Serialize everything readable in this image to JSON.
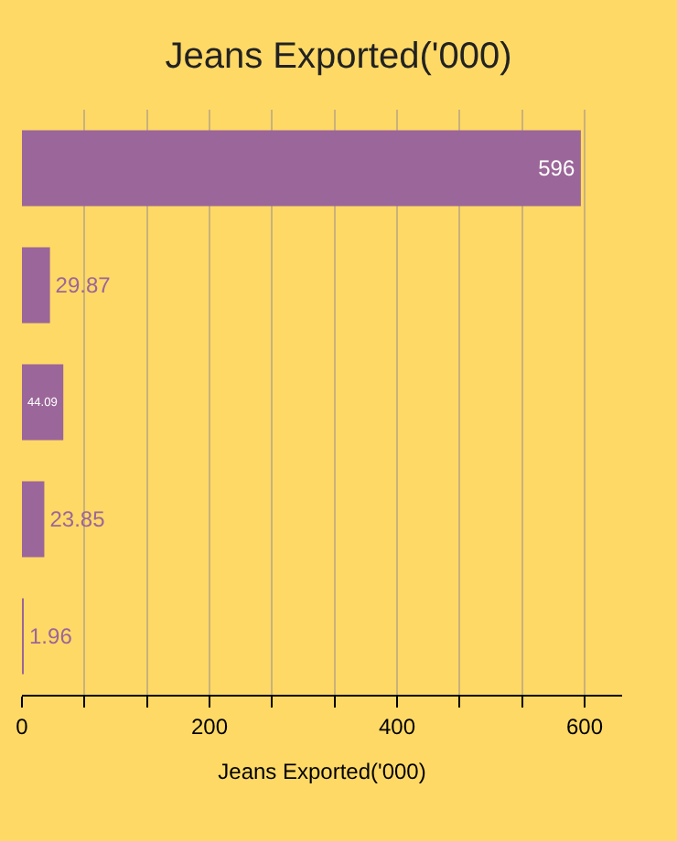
{
  "chart_data": {
    "type": "bar",
    "orientation": "horizontal",
    "title": "Jeans Exported('000)",
    "xlabel": "Jeans Exported('000)",
    "categories": [
      null,
      null,
      null,
      null,
      null
    ],
    "values": [
      596,
      29.87,
      44.09,
      23.85,
      1.96
    ],
    "value_labels": [
      "596",
      "29.87",
      "44.09",
      "23.85",
      "1.96"
    ],
    "color": "#9b6699",
    "xlim": [
      0,
      640
    ],
    "xticks": [
      0,
      {
        "value": 66.7,
        "label": null
      },
      {
        "value": 133.3,
        "label": null
      },
      200,
      {
        "value": 266.7,
        "label": null
      },
      {
        "value": 333.3,
        "label": null
      },
      400,
      {
        "value": 466.7,
        "label": null
      },
      {
        "value": 533.3,
        "label": null
      },
      600
    ],
    "grid": "x"
  }
}
